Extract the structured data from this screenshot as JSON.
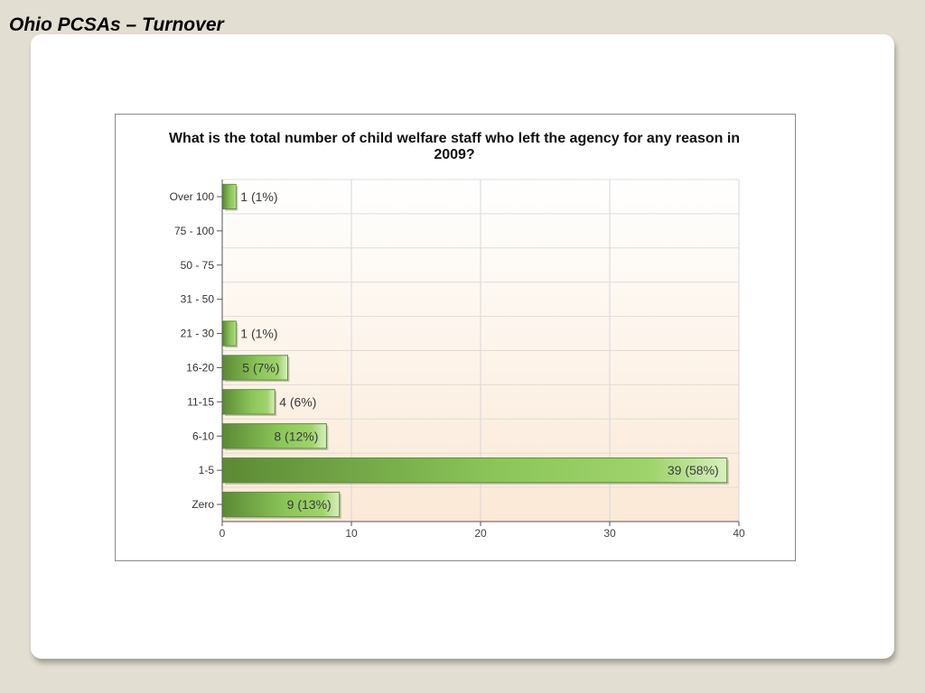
{
  "slide": {
    "title": "Ohio PCSAs – Turnover"
  },
  "chart_data": {
    "type": "bar",
    "orientation": "horizontal",
    "title": "What is the total number of child welfare staff who left the agency for any reason in 2009?",
    "categories": [
      "Over 100",
      "75 - 100",
      "50 - 75",
      "31 - 50",
      "21 - 30",
      "16-20",
      "11-15",
      "6-10",
      "1-5",
      "Zero"
    ],
    "values": [
      1,
      0,
      0,
      0,
      1,
      5,
      4,
      8,
      39,
      9
    ],
    "data_labels": [
      "1 (1%)",
      "",
      "",
      "",
      "1 (1%)",
      "5 (7%)",
      "4 (6%)",
      "8 (12%)",
      "39 (58%)",
      "9 (13%)"
    ],
    "xlim": [
      0,
      40
    ],
    "xticks": [
      0,
      10,
      20,
      30,
      40
    ],
    "grid": true,
    "bar_color": "#8cc65a",
    "bar_color_dark": "#5c8a35"
  }
}
